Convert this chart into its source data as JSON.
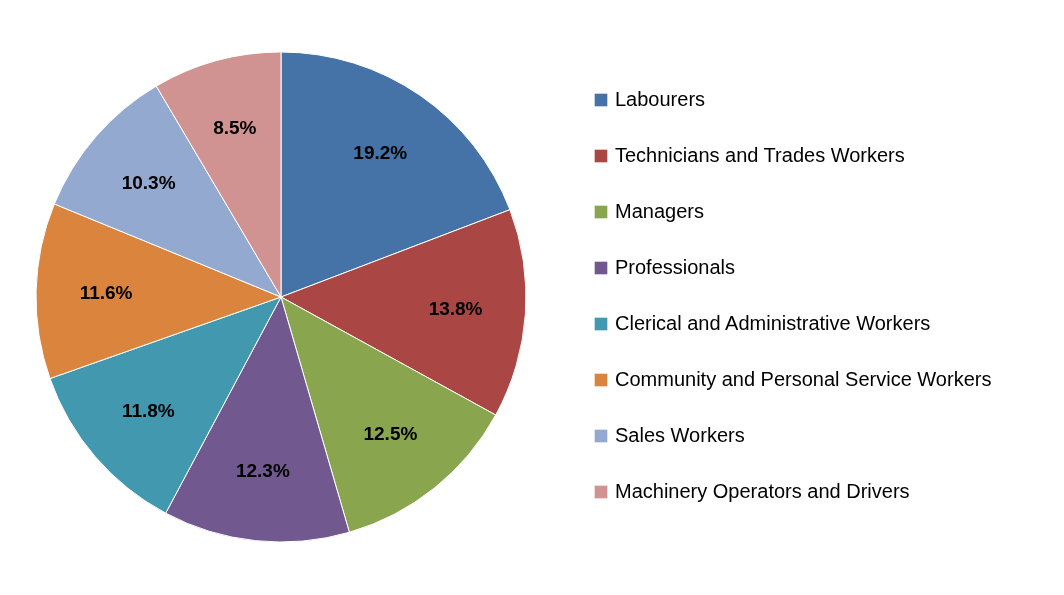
{
  "chart_data": {
    "type": "pie",
    "categories": [
      "Labourers",
      "Technicians and Trades Workers",
      "Managers",
      "Professionals",
      "Clerical and Administrative Workers",
      "Community and Personal Service Workers",
      "Sales Workers",
      "Machinery Operators and Drivers"
    ],
    "values": [
      19.2,
      13.8,
      12.5,
      12.3,
      11.8,
      11.6,
      10.3,
      8.5
    ],
    "value_labels": [
      "19.2%",
      "13.8%",
      "12.5%",
      "12.3%",
      "11.8%",
      "11.6%",
      "10.3%",
      "8.5%"
    ],
    "colors": [
      "#4572a7",
      "#aa4643",
      "#89a54e",
      "#71588f",
      "#4198af",
      "#db843d",
      "#93a9cf",
      "#d19392"
    ],
    "legend": "right"
  }
}
